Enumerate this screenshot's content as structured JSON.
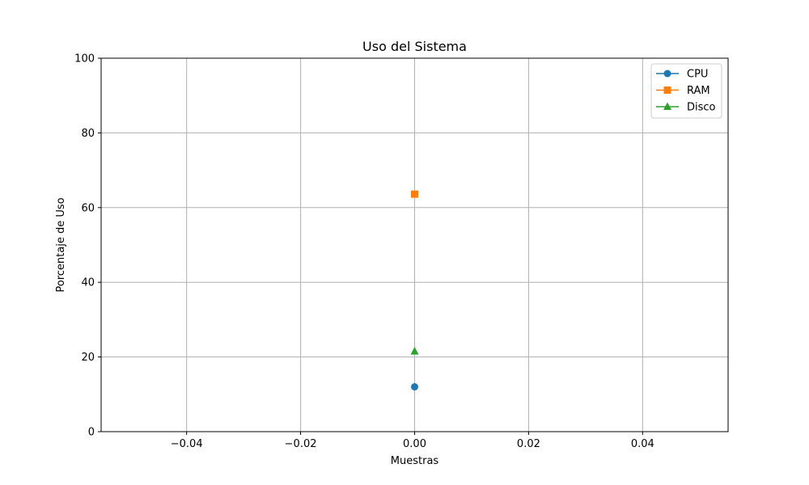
{
  "chart_data": {
    "type": "line",
    "title": "Uso del Sistema",
    "xlabel": "Muestras",
    "ylabel": "Porcentaje de Uso",
    "xlim": [
      -0.055,
      0.055
    ],
    "ylim": [
      0,
      100
    ],
    "xticks": [
      -0.04,
      -0.02,
      0.0,
      0.02,
      0.04
    ],
    "xtick_labels": [
      "−0.04",
      "−0.02",
      "0.00",
      "0.02",
      "0.04"
    ],
    "yticks": [
      0,
      20,
      40,
      60,
      80,
      100
    ],
    "ytick_labels": [
      "0",
      "20",
      "40",
      "60",
      "80",
      "100"
    ],
    "grid": true,
    "legend_position": "top-right",
    "series": [
      {
        "name": "CPU",
        "marker": "circle",
        "color": "#1f77b4",
        "x": [
          0
        ],
        "y": [
          12
        ]
      },
      {
        "name": "RAM",
        "marker": "square",
        "color": "#ff7f0e",
        "x": [
          0
        ],
        "y": [
          63.6
        ]
      },
      {
        "name": "Disco",
        "marker": "triangle",
        "color": "#2ca02c",
        "x": [
          0
        ],
        "y": [
          21.5
        ]
      }
    ]
  }
}
